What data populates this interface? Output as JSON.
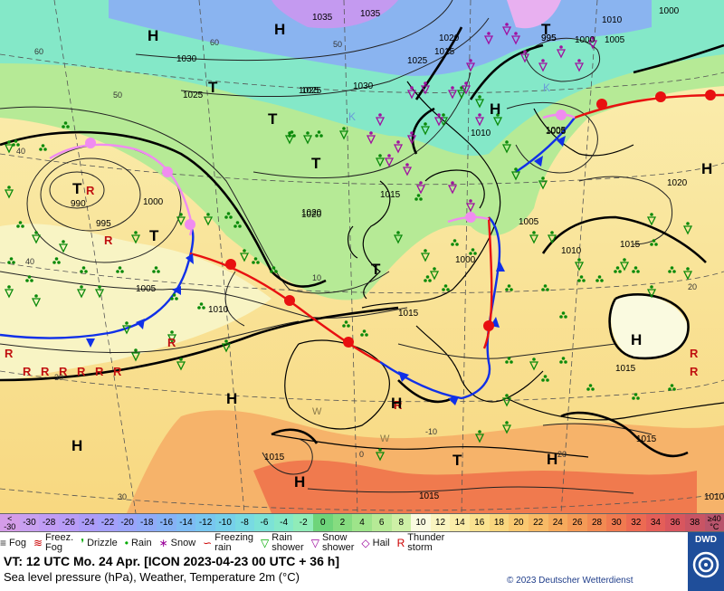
{
  "map": {
    "pressure_labels": [
      {
        "text": "1035"
      },
      {
        "text": "1035"
      },
      {
        "text": "1030"
      },
      {
        "text": "1030"
      },
      {
        "text": "1025"
      },
      {
        "text": "1025"
      },
      {
        "text": "1025"
      },
      {
        "text": "1020"
      },
      {
        "text": "1020"
      },
      {
        "text": "1010"
      },
      {
        "text": "1005"
      },
      {
        "text": "1000"
      },
      {
        "text": "995"
      },
      {
        "text": "990"
      },
      {
        "text": "995"
      },
      {
        "text": "1000"
      },
      {
        "text": "1005"
      },
      {
        "text": "1010"
      },
      {
        "text": "1015"
      },
      {
        "text": "1015"
      },
      {
        "text": "1020"
      },
      {
        "text": "1015"
      },
      {
        "text": "1010"
      },
      {
        "text": "1015"
      },
      {
        "text": "1015"
      },
      {
        "text": "1010"
      },
      {
        "text": "1015"
      },
      {
        "text": "1015"
      },
      {
        "text": "1010"
      },
      {
        "text": "1005"
      },
      {
        "text": "1000"
      },
      {
        "text": "1000"
      },
      {
        "text": "1005"
      },
      {
        "text": "1020"
      },
      {
        "text": "1005"
      },
      {
        "text": "995"
      },
      {
        "text": "1015"
      },
      {
        "text": "1025"
      }
    ],
    "centers": [
      {
        "text": "H",
        "kind": "high"
      },
      {
        "text": "H",
        "kind": "high"
      },
      {
        "text": "H",
        "kind": "high"
      },
      {
        "text": "H",
        "kind": "high"
      },
      {
        "text": "H",
        "kind": "high"
      },
      {
        "text": "H",
        "kind": "high"
      },
      {
        "text": "H",
        "kind": "high"
      },
      {
        "text": "H",
        "kind": "high"
      },
      {
        "text": "H",
        "kind": "high"
      },
      {
        "text": "H",
        "kind": "high"
      },
      {
        "text": "T",
        "kind": "low"
      },
      {
        "text": "T",
        "kind": "low"
      },
      {
        "text": "T",
        "kind": "low"
      },
      {
        "text": "T",
        "kind": "low"
      },
      {
        "text": "T",
        "kind": "low"
      },
      {
        "text": "T",
        "kind": "low"
      },
      {
        "text": "T",
        "kind": "low"
      },
      {
        "text": "T",
        "kind": "low"
      },
      {
        "text": "K",
        "kind": "cold"
      },
      {
        "text": "K",
        "kind": "cold"
      },
      {
        "text": "W",
        "kind": "warm"
      },
      {
        "text": "W",
        "kind": "warm"
      }
    ],
    "grid_labels": [
      "60",
      "60",
      "50",
      "50",
      "40",
      "40",
      "30",
      "30",
      "20",
      "20",
      "10",
      "0",
      "-10"
    ],
    "colors": {
      "deep_warm": "#f07a4e",
      "warm": "#f6b36a",
      "mild": "#f8e08e",
      "light": "#f8f4c4",
      "cool": "#a6e6a0",
      "green": "#6ed47a",
      "cold": "#78d6cc",
      "colder": "#8ab4f0",
      "purple": "#c49af0",
      "coast": "#000000",
      "front_cold": "#1030e8",
      "front_warm": "#e81010",
      "front_occluded": "#f08cf0"
    }
  },
  "scale": {
    "cells": [
      {
        "label": "<\n-30",
        "color": "#d49ce8"
      },
      {
        "label": "-30",
        "color": "#c8a0f0"
      },
      {
        "label": "-28",
        "color": "#c09cf4"
      },
      {
        "label": "-26",
        "color": "#b89cf6"
      },
      {
        "label": "-24",
        "color": "#ac9cf8"
      },
      {
        "label": "-22",
        "color": "#a4a0fa"
      },
      {
        "label": "-20",
        "color": "#9aa4fa"
      },
      {
        "label": "-18",
        "color": "#90aaf8"
      },
      {
        "label": "-16",
        "color": "#86b2f6"
      },
      {
        "label": "-14",
        "color": "#7ebcf4"
      },
      {
        "label": "-12",
        "color": "#78c6f0"
      },
      {
        "label": "-10",
        "color": "#76d0ea"
      },
      {
        "label": "-8",
        "color": "#78dae2"
      },
      {
        "label": "-6",
        "color": "#7ce2d6"
      },
      {
        "label": "-4",
        "color": "#84e8c8"
      },
      {
        "label": "-2",
        "color": "#90ecb8"
      },
      {
        "label": "0",
        "color": "#6ed47a"
      },
      {
        "label": "2",
        "color": "#86dc80"
      },
      {
        "label": "4",
        "color": "#9ee48a"
      },
      {
        "label": "6",
        "color": "#b6ea96"
      },
      {
        "label": "8",
        "color": "#cef0a6"
      },
      {
        "label": "10",
        "color": "#fafae0"
      },
      {
        "label": "12",
        "color": "#faf4c0"
      },
      {
        "label": "14",
        "color": "#faeca8"
      },
      {
        "label": "16",
        "color": "#fae290"
      },
      {
        "label": "18",
        "color": "#fad67e"
      },
      {
        "label": "20",
        "color": "#fac870"
      },
      {
        "label": "22",
        "color": "#f8ba66"
      },
      {
        "label": "24",
        "color": "#f6aa5c"
      },
      {
        "label": "26",
        "color": "#f49a56"
      },
      {
        "label": "28",
        "color": "#f28a52"
      },
      {
        "label": "30",
        "color": "#f07a50"
      },
      {
        "label": "32",
        "color": "#ec6a52"
      },
      {
        "label": "34",
        "color": "#e45e58"
      },
      {
        "label": "36",
        "color": "#d8565e"
      },
      {
        "label": "38",
        "color": "#c85464"
      },
      {
        "label": "≥40\n°C",
        "color": "#b8546c"
      }
    ]
  },
  "legend": [
    {
      "symbol": "≡",
      "label": "Fog",
      "color": "#333"
    },
    {
      "symbol": "≋",
      "label": "Freez.\nFog",
      "color": "#c00"
    },
    {
      "symbol": "❜",
      "label": "Drizzle",
      "color": "#0a0"
    },
    {
      "symbol": "•",
      "label": "Rain",
      "color": "#0a0"
    },
    {
      "symbol": "∗",
      "label": "Snow",
      "color": "#909"
    },
    {
      "symbol": "∽",
      "label": "Freezing\nrain",
      "color": "#c00"
    },
    {
      "symbol": "▽",
      "label": "Rain\nshower",
      "color": "#0a0"
    },
    {
      "symbol": "▽",
      "label": "Snow\nshower",
      "color": "#909"
    },
    {
      "symbol": "◇",
      "label": "Hail",
      "color": "#909"
    },
    {
      "symbol": "R",
      "label": "Thunder\nstorm",
      "color": "#c00"
    }
  ],
  "footer": {
    "line1": "VT: 12 UTC Mo.   24 Apr. [ICON 2023-04-23  00 UTC + 36 h]",
    "line2": "Sea level pressure (hPa), Weather, Temperature 2m (°C)",
    "copyright": "© 2023 Deutscher Wetterdienst",
    "logo": "DWD"
  }
}
